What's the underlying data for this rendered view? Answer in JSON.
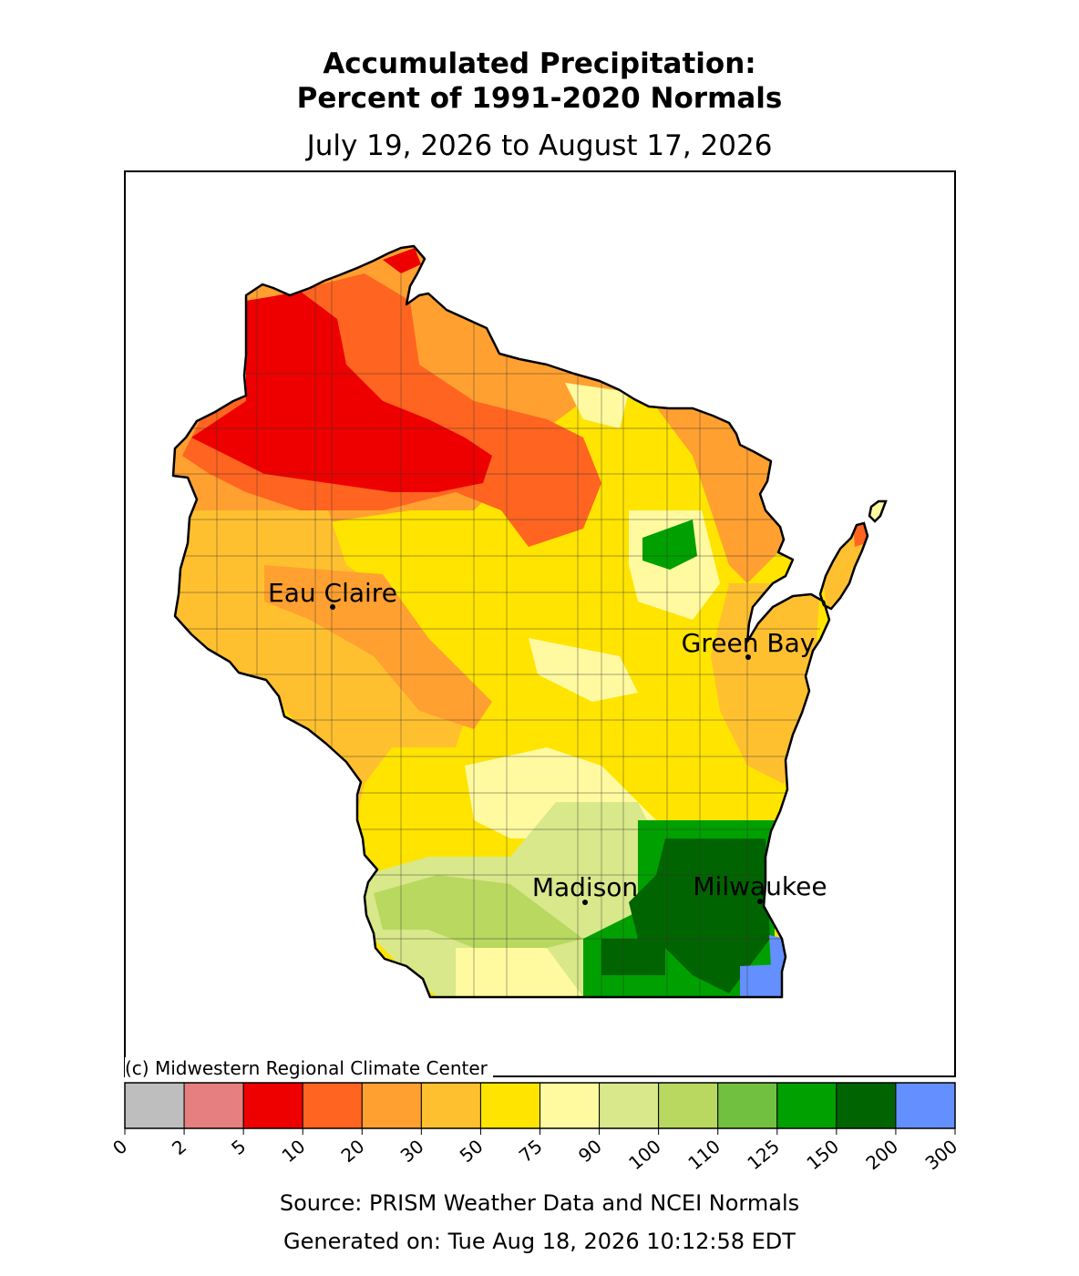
{
  "title_line1": "Accumulated Precipitation:",
  "title_line2": "Percent of 1991-2020 Normals",
  "date_range": "July 19, 2026 to August 17, 2026",
  "credit": "(c) Midwestern Regional Climate Center",
  "source": "Source: PRISM Weather Data and NCEI Normals",
  "generated": "Generated on: Tue Aug 18, 2026 10:12:58 EDT",
  "cities": [
    {
      "name": "Eau Claire"
    },
    {
      "name": "Green Bay"
    },
    {
      "name": "Madison"
    },
    {
      "name": "Milwaukee"
    }
  ],
  "legend": {
    "ticks": [
      "0",
      "2",
      "5",
      "10",
      "20",
      "30",
      "50",
      "75",
      "90",
      "100",
      "110",
      "125",
      "150",
      "200",
      "300"
    ],
    "colors": [
      "#bebebe",
      "#e67f7f",
      "#ee0000",
      "#ff6420",
      "#ffa030",
      "#ffc030",
      "#ffe400",
      "#fffaa0",
      "#d8e88a",
      "#b8d860",
      "#72c040",
      "#00a000",
      "#006400",
      "#6490ff"
    ]
  },
  "region_colors": {
    "red": "#ee0000",
    "red_orange": "#ff6420",
    "orange": "#ffa030",
    "light_orange": "#ffc030",
    "yellow": "#ffe400",
    "pale_yellow": "#fffaa0",
    "pale_green": "#d8e88a",
    "light_green": "#b8d860",
    "green": "#72c040",
    "medium_green": "#00a000",
    "dark_green": "#006400",
    "blue": "#6490ff"
  }
}
